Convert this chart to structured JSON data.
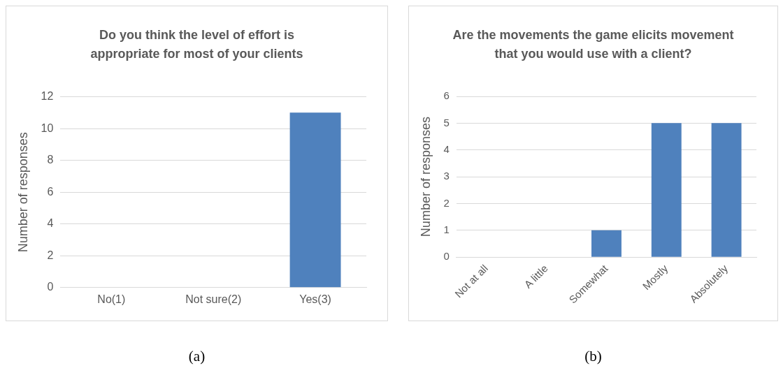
{
  "chart_data": [
    {
      "type": "bar",
      "title": "Do you think the level of effort is appropriate for most of your clients",
      "categories": [
        "No(1)",
        "Not sure(2)",
        "Yes(3)"
      ],
      "values": [
        0,
        0,
        11
      ],
      "color": "#4f81bd",
      "ylabel": "Number of responses",
      "ylim": [
        0,
        12
      ],
      "yticks": [
        0,
        2,
        4,
        6,
        8,
        10,
        12
      ],
      "grid": "y",
      "legend": false,
      "annotations": [
        "(a)"
      ]
    },
    {
      "type": "bar",
      "title": "Are the movements the game elicits movement that you would use with a client?",
      "categories": [
        "Not at all",
        "A little",
        "Somewhat",
        "Mostly",
        "Absolutely"
      ],
      "values": [
        0,
        0,
        1,
        5,
        5
      ],
      "color": "#4f81bd",
      "ylabel": "Number of responses",
      "ylim": [
        0,
        6
      ],
      "yticks": [
        0,
        1,
        2,
        3,
        4,
        5,
        6
      ],
      "grid": "y",
      "legend": false,
      "annotations": [
        "(b)"
      ]
    }
  ]
}
